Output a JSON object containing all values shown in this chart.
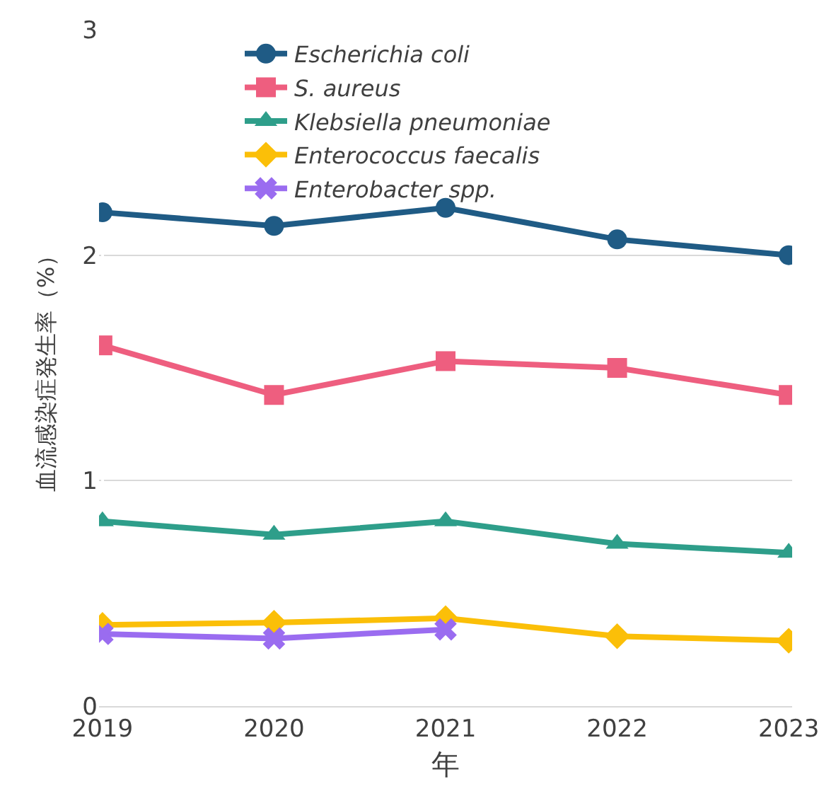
{
  "chart_data": {
    "type": "line",
    "xlabel": "年",
    "ylabel": "血流感染症発生率（%）",
    "categories": [
      "2019",
      "2020",
      "2021",
      "2022",
      "2023"
    ],
    "series": [
      {
        "name": "Escherichia coli",
        "color": "#1f5b85",
        "marker": "circle",
        "values": [
          2.19,
          2.13,
          2.21,
          2.07,
          2.0
        ]
      },
      {
        "name": "S. aureus",
        "color": "#ee5e7f",
        "marker": "square",
        "values": [
          1.6,
          1.38,
          1.53,
          1.5,
          1.38
        ]
      },
      {
        "name": "Klebsiella pneumoniae",
        "color": "#2e9e8a",
        "marker": "triangle",
        "values": [
          0.82,
          0.76,
          0.82,
          0.72,
          0.68
        ]
      },
      {
        "name": "Enterococcus faecalis",
        "color": "#fbbf08",
        "marker": "diamond",
        "values": [
          0.36,
          0.37,
          0.39,
          0.31,
          0.29
        ]
      },
      {
        "name": "Enterobacter spp.",
        "color": "#9a6cf0",
        "marker": "cross",
        "values": [
          0.32,
          0.3,
          0.34,
          null,
          null
        ]
      }
    ],
    "ylim": [
      0,
      3
    ],
    "yticks": [
      0,
      1,
      2,
      3
    ],
    "grid": "y",
    "legend": "top",
    "line_style": "solid"
  }
}
